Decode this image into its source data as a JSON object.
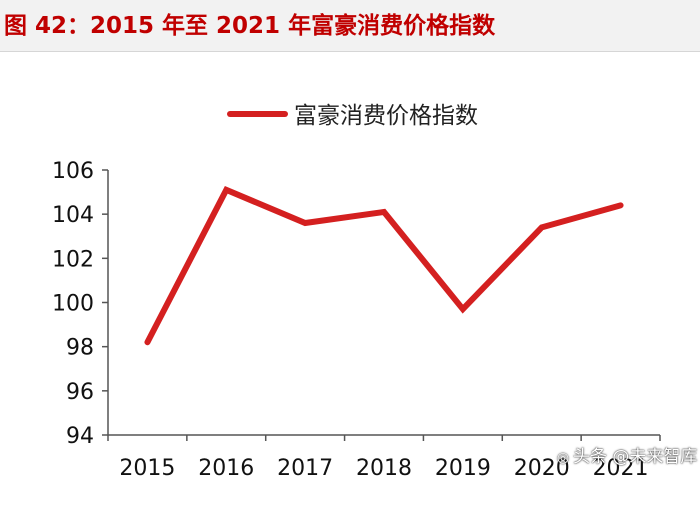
{
  "figure_title": "图 42：2015 年至 2021 年富豪消费价格指数",
  "watermark": {
    "text": "头条 @未来智库",
    "icon": "camera-icon"
  },
  "colors": {
    "title": "#c00000",
    "series_line": "#d42020",
    "axis": "#555555",
    "title_bar": "#f2f2f2"
  },
  "chart_data": {
    "type": "line",
    "title": "",
    "xlabel": "",
    "ylabel": "",
    "x": [
      "2015",
      "2016",
      "2017",
      "2018",
      "2019",
      "2020",
      "2021"
    ],
    "series": [
      {
        "name": "富豪消费价格指数",
        "values": [
          98.2,
          105.1,
          103.6,
          104.1,
          99.7,
          103.4,
          104.4
        ]
      }
    ],
    "ylim": [
      94,
      106
    ],
    "yticks": [
      94,
      96,
      98,
      100,
      102,
      104,
      106
    ],
    "grid": false,
    "legend": "top-center"
  }
}
